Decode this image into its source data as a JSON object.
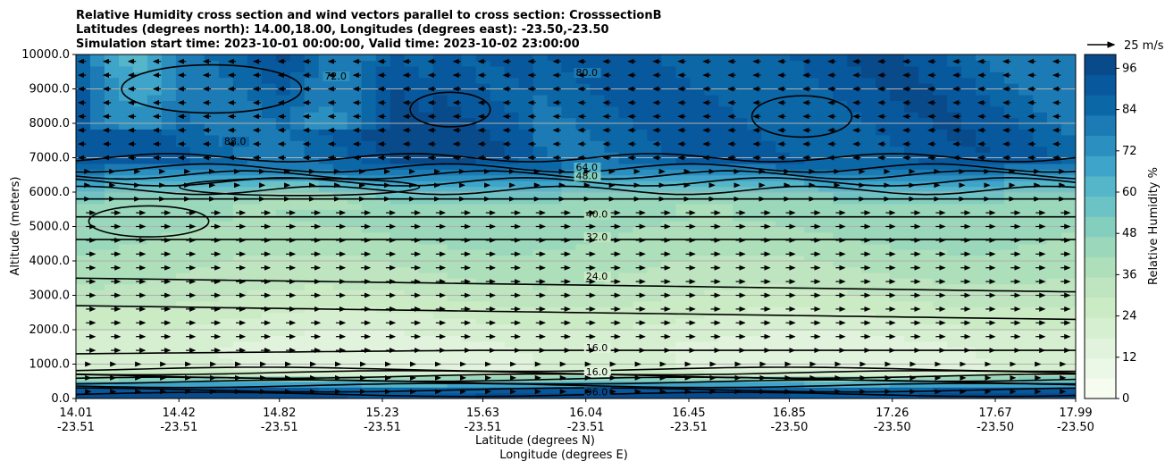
{
  "chart_data": {
    "type": "contour",
    "title_lines": [
      "Relative Humidity cross section and wind vectors parallel to cross section: CrosssectionB",
      "Latitudes (degrees north): 14.00,18.00, Longitudes (degrees east): -23.50,-23.50",
      "Simulation start time: 2023-10-01 00:00:00, Valid time: 2023-10-02 23:00:00"
    ],
    "xlabel": "Latitude (degrees N)",
    "xlabel2": "Longitude (degrees E)",
    "ylabel": "Altitude (meters)",
    "xlim": [
      14.01,
      17.99
    ],
    "ylim": [
      0,
      10000
    ],
    "grid": "horizontal",
    "x_ticks": [
      {
        "lat": "14.01",
        "lon": "-23.51",
        "value": 14.01
      },
      {
        "lat": "14.42",
        "lon": "-23.51",
        "value": 14.42
      },
      {
        "lat": "14.82",
        "lon": "-23.51",
        "value": 14.82
      },
      {
        "lat": "15.23",
        "lon": "-23.51",
        "value": 15.23
      },
      {
        "lat": "15.63",
        "lon": "-23.51",
        "value": 15.63
      },
      {
        "lat": "16.04",
        "lon": "-23.51",
        "value": 16.04
      },
      {
        "lat": "16.45",
        "lon": "-23.51",
        "value": 16.45
      },
      {
        "lat": "16.85",
        "lon": "-23.50",
        "value": 16.85
      },
      {
        "lat": "17.26",
        "lon": "-23.50",
        "value": 17.26
      },
      {
        "lat": "17.67",
        "lon": "-23.50",
        "value": 17.67
      },
      {
        "lat": "17.99",
        "lon": "-23.50",
        "value": 17.99
      }
    ],
    "y_ticks": [
      "0.0",
      "1000.0",
      "2000.0",
      "3000.0",
      "4000.0",
      "5000.0",
      "6000.0",
      "7000.0",
      "8000.0",
      "9000.0",
      "10000.0"
    ],
    "colorbar": {
      "label": "Relative Humidity %",
      "min": 0,
      "max": 100,
      "ticks": [
        "0",
        "12",
        "24",
        "36",
        "48",
        "60",
        "72",
        "84",
        "96"
      ],
      "colors": [
        "#f7fcf0",
        "#ecf8e7",
        "#e1f3dc",
        "#d6efd0",
        "#cbebc5",
        "#bee5bf",
        "#addfba",
        "#9bd8bb",
        "#84cebe",
        "#6cc3c5",
        "#55b5c9",
        "#3fa4c9",
        "#2b8fbf",
        "#1c7bb4",
        "#0c67a7",
        "#08589e",
        "#084a8a"
      ]
    },
    "quiver_key": {
      "label": "25 m/s",
      "speed": 25
    },
    "contour_levels": [
      {
        "level": "16.0",
        "at_lat": 16.04,
        "z": 1400
      },
      {
        "level": "16.0",
        "at_lat": 16.04,
        "z": 700
      },
      {
        "level": "24.0",
        "at_lat": 16.04,
        "z": 3480
      },
      {
        "level": "32.0",
        "at_lat": 16.04,
        "z": 4620
      },
      {
        "level": "40.0",
        "at_lat": 16.04,
        "z": 5280
      },
      {
        "level": "48.0",
        "at_lat": 16.0,
        "z": 6400
      },
      {
        "level": "64.0",
        "at_lat": 16.0,
        "z": 6650
      },
      {
        "level": "72.0",
        "at_lat": 15.0,
        "z": 9300
      },
      {
        "level": "80.0",
        "at_lat": 16.0,
        "z": 9400
      },
      {
        "level": "88.0",
        "at_lat": 14.6,
        "z": 7400
      },
      {
        "level": "96.0",
        "at_lat": 16.04,
        "z": 120
      }
    ]
  }
}
